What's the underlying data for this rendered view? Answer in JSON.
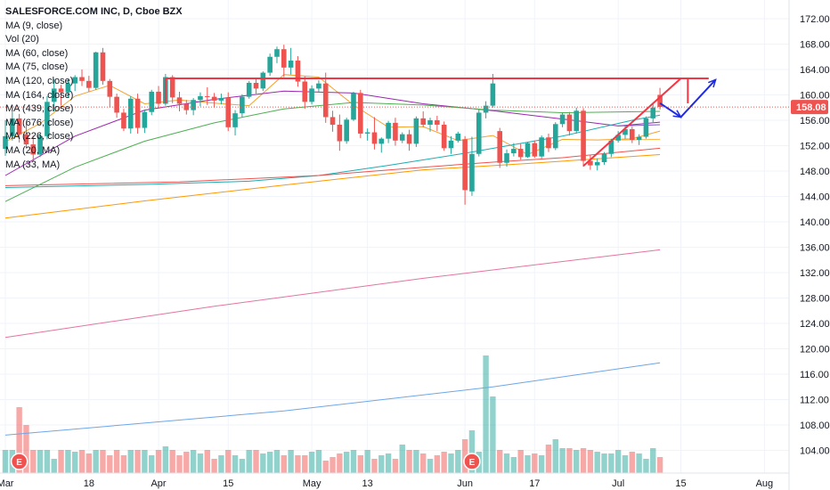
{
  "chart_data": {
    "type": "candlestick",
    "title": "SALESFORCE.COM INC, D, Cboe BZX",
    "indicators": [
      "MA (9, close)",
      "Vol (20)",
      "MA (60, close)",
      "MA (75, close)",
      "MA (120, close)",
      "MA (164, close)",
      "MA (439, close)",
      "MA (676, close)",
      "MA (226, close)",
      "MA (20, MA)",
      "MA (33, MA)"
    ],
    "y_ticks": [
      "172.00",
      "168.00",
      "164.00",
      "160.00",
      "156.00",
      "152.00",
      "148.00",
      "144.00",
      "140.00",
      "136.00",
      "132.00",
      "128.00",
      "124.00",
      "120.00",
      "116.00",
      "112.00",
      "108.00",
      "104.00"
    ],
    "ylim": [
      101.0,
      174.5
    ],
    "x_ticks": [
      {
        "label": "Mar",
        "i": 0
      },
      {
        "label": "18",
        "i": 12
      },
      {
        "label": "Apr",
        "i": 22
      },
      {
        "label": "15",
        "i": 32
      },
      {
        "label": "May",
        "i": 44
      },
      {
        "label": "13",
        "i": 52
      },
      {
        "label": "Jun",
        "i": 66
      },
      {
        "label": "17",
        "i": 76
      },
      {
        "label": "Jul",
        "i": 88
      },
      {
        "label": "15",
        "i": 97
      },
      {
        "label": "Aug",
        "i": 109
      }
    ],
    "current_price": "158.08",
    "current_value": 158.08,
    "earnings_markers": [
      {
        "label": "E",
        "i": 2
      },
      {
        "label": "E",
        "i": 67
      }
    ],
    "candles": [
      [
        151.5,
        156.0,
        150.4,
        153.5
      ],
      [
        153.5,
        157.4,
        152.8,
        156.3
      ],
      [
        156.3,
        157.0,
        152.5,
        153.8
      ],
      [
        153.8,
        155.6,
        151.6,
        152.2
      ],
      [
        152.2,
        153.6,
        149.5,
        150.6
      ],
      [
        150.6,
        153.9,
        150.2,
        153.5
      ],
      [
        153.5,
        159.8,
        153.0,
        158.9
      ],
      [
        158.9,
        162.5,
        157.4,
        161.0
      ],
      [
        161.0,
        161.6,
        158.3,
        160.4
      ],
      [
        160.4,
        162.5,
        159.5,
        161.8
      ],
      [
        161.8,
        163.1,
        160.6,
        162.8
      ],
      [
        162.8,
        164.0,
        161.4,
        162.2
      ],
      [
        162.2,
        163.0,
        160.5,
        161.1
      ],
      [
        161.1,
        166.8,
        160.8,
        166.7
      ],
      [
        166.7,
        167.4,
        161.6,
        162.2
      ],
      [
        162.2,
        162.5,
        158.0,
        159.7
      ],
      [
        159.7,
        160.2,
        156.4,
        157.2
      ],
      [
        157.2,
        157.8,
        154.3,
        154.7
      ],
      [
        154.7,
        159.8,
        153.9,
        159.4
      ],
      [
        159.4,
        160.2,
        153.9,
        154.8
      ],
      [
        154.8,
        157.6,
        154.0,
        157.3
      ],
      [
        157.3,
        160.8,
        156.8,
        160.5
      ],
      [
        160.5,
        161.4,
        157.8,
        158.6
      ],
      [
        158.6,
        163.3,
        158.3,
        162.8
      ],
      [
        162.8,
        163.1,
        158.7,
        159.6
      ],
      [
        159.6,
        160.5,
        157.4,
        158.6
      ],
      [
        158.6,
        159.2,
        156.9,
        157.6
      ],
      [
        157.6,
        159.5,
        156.8,
        159.2
      ],
      [
        159.2,
        160.4,
        158.2,
        159.8
      ],
      [
        159.8,
        161.2,
        158.4,
        159.7
      ],
      [
        159.7,
        160.3,
        158.0,
        159.1
      ],
      [
        159.1,
        160.2,
        158.5,
        159.5
      ],
      [
        159.5,
        160.4,
        154.3,
        154.9
      ],
      [
        154.9,
        157.6,
        153.6,
        157.1
      ],
      [
        157.1,
        160.1,
        156.5,
        159.7
      ],
      [
        159.7,
        162.2,
        159.4,
        161.9
      ],
      [
        161.9,
        162.7,
        160.2,
        161.0
      ],
      [
        161.0,
        163.7,
        160.6,
        163.5
      ],
      [
        163.5,
        166.5,
        163.0,
        166.0
      ],
      [
        166.0,
        167.6,
        165.0,
        167.2
      ],
      [
        167.2,
        167.9,
        162.8,
        164.3
      ],
      [
        164.3,
        167.4,
        163.2,
        165.4
      ],
      [
        165.4,
        166.1,
        161.3,
        162.1
      ],
      [
        162.1,
        162.9,
        157.8,
        158.9
      ],
      [
        158.9,
        161.5,
        158.5,
        161.0
      ],
      [
        161.0,
        162.3,
        160.5,
        161.8
      ],
      [
        161.8,
        163.5,
        155.6,
        156.5
      ],
      [
        156.5,
        157.5,
        154.2,
        155.3
      ],
      [
        155.3,
        156.9,
        151.2,
        152.7
      ],
      [
        152.7,
        156.4,
        152.3,
        156.1
      ],
      [
        156.1,
        160.5,
        155.9,
        160.3
      ],
      [
        160.3,
        160.8,
        153.2,
        153.9
      ],
      [
        153.9,
        154.7,
        152.8,
        154.1
      ],
      [
        154.1,
        156.5,
        151.4,
        152.3
      ],
      [
        152.3,
        153.3,
        150.9,
        153.1
      ],
      [
        153.1,
        155.9,
        152.4,
        155.6
      ],
      [
        155.6,
        156.4,
        152.0,
        152.8
      ],
      [
        152.8,
        154.1,
        152.4,
        153.8
      ],
      [
        153.8,
        154.5,
        151.2,
        152.3
      ],
      [
        152.3,
        156.6,
        151.8,
        156.3
      ],
      [
        156.3,
        157.4,
        154.9,
        155.3
      ],
      [
        155.3,
        156.4,
        154.2,
        156.0
      ],
      [
        156.0,
        156.7,
        154.3,
        155.3
      ],
      [
        155.3,
        155.8,
        151.2,
        151.6
      ],
      [
        151.6,
        153.5,
        150.7,
        152.8
      ],
      [
        152.8,
        154.2,
        152.5,
        153.9
      ],
      [
        153.0,
        153.5,
        142.7,
        145.0
      ],
      [
        144.8,
        153.4,
        144.1,
        150.7
      ],
      [
        150.7,
        157.7,
        150.3,
        157.2
      ],
      [
        157.2,
        159.0,
        156.3,
        158.3
      ],
      [
        158.3,
        163.3,
        158.0,
        161.8
      ],
      [
        154.3,
        154.8,
        148.5,
        149.3
      ],
      [
        149.3,
        151.4,
        148.7,
        150.8
      ],
      [
        150.8,
        152.4,
        150.3,
        151.5
      ],
      [
        151.5,
        152.3,
        149.8,
        150.2
      ],
      [
        150.2,
        152.6,
        150.1,
        152.4
      ],
      [
        152.4,
        152.8,
        150.1,
        150.3
      ],
      [
        150.3,
        153.6,
        150.0,
        153.3
      ],
      [
        153.3,
        153.9,
        151.0,
        151.6
      ],
      [
        151.6,
        155.7,
        151.3,
        155.4
      ],
      [
        155.4,
        157.2,
        154.9,
        156.9
      ],
      [
        156.9,
        157.3,
        153.6,
        154.3
      ],
      [
        154.3,
        158.0,
        153.9,
        157.5
      ],
      [
        157.5,
        157.9,
        148.7,
        149.6
      ],
      [
        149.6,
        150.5,
        148.2,
        148.9
      ],
      [
        148.9,
        150.0,
        148.1,
        149.4
      ],
      [
        149.4,
        151.0,
        149.0,
        150.7
      ],
      [
        150.7,
        153.1,
        150.2,
        152.8
      ],
      [
        152.8,
        154.3,
        152.5,
        153.7
      ],
      [
        153.7,
        155.3,
        153.1,
        154.6
      ],
      [
        154.6,
        155.0,
        152.4,
        152.9
      ],
      [
        152.9,
        153.8,
        152.1,
        153.4
      ],
      [
        153.4,
        156.6,
        153.1,
        156.3
      ],
      [
        156.3,
        158.6,
        155.7,
        158.0
      ],
      [
        160.0,
        161.1,
        157.7,
        158.1
      ]
    ],
    "volumes": [
      44,
      30,
      52,
      42,
      34,
      32,
      30,
      28,
      26,
      28,
      32,
      34,
      30,
      36,
      34,
      28,
      30,
      32,
      36,
      30,
      32,
      30,
      28,
      34,
      32,
      30,
      28,
      30,
      32,
      34,
      26,
      32,
      36,
      30,
      28,
      30,
      32,
      28,
      34,
      30,
      36,
      34,
      32,
      30,
      28,
      30,
      36,
      34,
      32,
      30,
      28,
      32,
      34,
      30,
      32,
      30,
      28,
      36,
      34,
      32,
      30,
      28,
      30,
      32,
      34,
      38,
      48,
      38,
      30,
      70,
      62,
      36,
      30,
      28,
      34,
      30,
      32,
      28,
      36,
      38,
      34,
      32,
      30,
      34,
      32,
      30,
      28,
      30,
      32,
      30,
      28,
      30,
      26,
      34,
      28
    ],
    "volume_heights_px": [
      26,
      26,
      74,
      54,
      26,
      26,
      26,
      16,
      26,
      26,
      24,
      26,
      22,
      26,
      26,
      20,
      26,
      20,
      26,
      26,
      26,
      20,
      26,
      30,
      26,
      20,
      24,
      26,
      22,
      26,
      16,
      20,
      26,
      20,
      16,
      26,
      26,
      22,
      24,
      26,
      20,
      26,
      20,
      20,
      24,
      26,
      14,
      18,
      22,
      24,
      26,
      20,
      26,
      16,
      20,
      22,
      16,
      32,
      26,
      26,
      22,
      16,
      20,
      24,
      22,
      26,
      38,
      48,
      24,
      132,
      86,
      26,
      22,
      18,
      26,
      20,
      22,
      20,
      32,
      38,
      28,
      28,
      26,
      28,
      26,
      24,
      22,
      22,
      26,
      20,
      24,
      22,
      16,
      28,
      18
    ],
    "moving_averages": [
      {
        "color": "#f5a32d",
        "points": [
          [
            0,
            152.6
          ],
          [
            5,
            155.5
          ],
          [
            10,
            159.8
          ],
          [
            15,
            161.5
          ],
          [
            20,
            158.6
          ],
          [
            25,
            159.2
          ],
          [
            30,
            158.7
          ],
          [
            35,
            158.3
          ],
          [
            40,
            163.2
          ],
          [
            45,
            162.8
          ],
          [
            50,
            158.4
          ],
          [
            55,
            154.9
          ],
          [
            60,
            155.0
          ],
          [
            65,
            152.8
          ],
          [
            70,
            153.6
          ],
          [
            75,
            150.6
          ],
          [
            80,
            153.0
          ],
          [
            85,
            152.9
          ],
          [
            90,
            153.1
          ],
          [
            94,
            154.3
          ]
        ]
      },
      {
        "color": "#9c27b0",
        "points": [
          [
            0,
            147.3
          ],
          [
            10,
            153.5
          ],
          [
            20,
            157.6
          ],
          [
            30,
            159.3
          ],
          [
            40,
            160.6
          ],
          [
            50,
            160.3
          ],
          [
            60,
            158.6
          ],
          [
            70,
            157.5
          ],
          [
            80,
            156.2
          ],
          [
            88,
            155.1
          ],
          [
            94,
            155.7
          ]
        ]
      },
      {
        "color": "#4caf50",
        "points": [
          [
            0,
            143.2
          ],
          [
            10,
            148.6
          ],
          [
            20,
            152.7
          ],
          [
            30,
            155.6
          ],
          [
            40,
            157.8
          ],
          [
            50,
            158.8
          ],
          [
            60,
            158.4
          ],
          [
            70,
            157.6
          ],
          [
            80,
            157.2
          ],
          [
            94,
            157.4
          ]
        ]
      },
      {
        "color": "#1aadb3",
        "points": [
          [
            0,
            145.4
          ],
          [
            20,
            145.9
          ],
          [
            35,
            146.4
          ],
          [
            45,
            147.3
          ],
          [
            55,
            148.9
          ],
          [
            66,
            150.8
          ],
          [
            80,
            153.5
          ],
          [
            90,
            156.0
          ],
          [
            94,
            156.8
          ]
        ]
      },
      {
        "color": "#ef5350",
        "points": [
          [
            0,
            145.7
          ],
          [
            25,
            146.3
          ],
          [
            45,
            147.3
          ],
          [
            60,
            148.6
          ],
          [
            70,
            149.4
          ],
          [
            80,
            150.1
          ],
          [
            94,
            151.6
          ]
        ]
      },
      {
        "color": "#ff9800",
        "points": [
          [
            0,
            140.6
          ],
          [
            20,
            143.3
          ],
          [
            40,
            145.8
          ],
          [
            60,
            148.2
          ],
          [
            75,
            149.2
          ],
          [
            94,
            150.6
          ]
        ]
      },
      {
        "color": "#e573a0",
        "points": [
          [
            0,
            121.8
          ],
          [
            30,
            126.7
          ],
          [
            60,
            131.1
          ],
          [
            94,
            135.6
          ]
        ]
      },
      {
        "color": "#6ea6e8",
        "points": [
          [
            0,
            106.4
          ],
          [
            40,
            110.2
          ],
          [
            70,
            114.0
          ],
          [
            94,
            117.8
          ]
        ]
      },
      {
        "color": "#7e57c2",
        "points": [
          [
            88,
            155.1
          ],
          [
            94,
            155.3
          ]
        ]
      },
      {
        "color": "#ffb74d",
        "points": [
          [
            88,
            152.9
          ],
          [
            94,
            153.0
          ]
        ]
      }
    ],
    "drawings": [
      {
        "type": "horizontal_resistance",
        "color": "#f23645",
        "points": [
          [
            23,
            162.6
          ],
          [
            101,
            162.6
          ]
        ],
        "end_ticks_at": [
          23,
          98
        ]
      },
      {
        "type": "trendline",
        "color": "#f23645",
        "points": [
          [
            83,
            148.8
          ],
          [
            97,
            162.6
          ]
        ]
      },
      {
        "type": "projection_path",
        "color": "#1e2be0",
        "points": [
          [
            94,
            158.7
          ],
          [
            97,
            156.5
          ],
          [
            102,
            162.4
          ]
        ],
        "arrowheads": true
      }
    ],
    "grid": true,
    "legend_position": "top-left"
  }
}
